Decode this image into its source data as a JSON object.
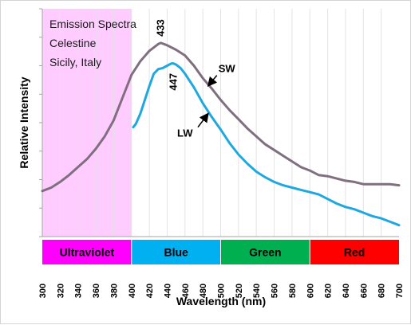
{
  "chart_data": {
    "type": "line",
    "title_lines": [
      "Emission Spectra",
      "Celestine",
      "Sicily, Italy"
    ],
    "xlabel": "Wavelength (nm)",
    "ylabel": "Relative Intensity",
    "xlim": [
      300,
      700
    ],
    "ylim": [
      0,
      100
    ],
    "x_ticks": [
      300,
      320,
      340,
      360,
      380,
      400,
      420,
      440,
      460,
      480,
      500,
      520,
      540,
      560,
      580,
      600,
      620,
      640,
      660,
      680,
      700
    ],
    "grid": "vertical",
    "shaded_region": {
      "from": 300,
      "to": 400,
      "color": "#ffccff"
    },
    "series": [
      {
        "name": "SW",
        "color": "#7f6f7f",
        "x": [
          300,
          310,
          320,
          330,
          340,
          350,
          360,
          370,
          380,
          390,
          400,
          410,
          420,
          430,
          433,
          440,
          450,
          460,
          470,
          480,
          490,
          500,
          510,
          520,
          530,
          540,
          550,
          560,
          570,
          580,
          590,
          600,
          610,
          620,
          630,
          640,
          650,
          660,
          670,
          680,
          690,
          700
        ],
        "y": [
          20,
          21.5,
          24,
          27,
          30.5,
          34,
          38.5,
          44,
          51,
          61,
          71,
          77,
          81.5,
          84.5,
          85,
          84,
          82,
          79.5,
          75,
          69.5,
          65,
          60,
          55.5,
          51.5,
          47.5,
          44,
          40.5,
          38,
          35.5,
          33,
          30.5,
          29,
          27,
          26.5,
          25.5,
          24.5,
          24,
          23,
          23,
          23,
          23,
          22.5
        ]
      },
      {
        "name": "LW",
        "color": "#1fa8e0",
        "x": [
          402,
          405,
          410,
          415,
          420,
          425,
          430,
          435,
          440,
          445,
          447,
          450,
          455,
          460,
          470,
          480,
          490,
          500,
          510,
          520,
          530,
          540,
          550,
          560,
          570,
          580,
          590,
          600,
          610,
          620,
          630,
          640,
          650,
          660,
          670,
          680,
          690,
          700
        ],
        "y": [
          48,
          49.5,
          54,
          60,
          66,
          71.5,
          73.5,
          74,
          75,
          76,
          76,
          75.5,
          74,
          71.5,
          65.5,
          58.5,
          52.5,
          47,
          41,
          36,
          32,
          28.5,
          26,
          24,
          22.5,
          21.5,
          20.5,
          19.5,
          18.5,
          16.5,
          14.5,
          13,
          12,
          10.5,
          9,
          8,
          6.5,
          5
        ]
      }
    ],
    "peak_labels": [
      {
        "text": "433",
        "series": "SW",
        "x": 433
      },
      {
        "text": "447",
        "series": "LW",
        "x": 447
      }
    ],
    "series_labels": [
      {
        "text": "SW",
        "series": "SW",
        "x": 485
      },
      {
        "text": "LW",
        "series": "LW",
        "x": 487
      }
    ],
    "bands": [
      {
        "label": "Ultraviolet",
        "from": 300,
        "to": 400,
        "color": "#ff00ff"
      },
      {
        "label": "Blue",
        "from": 400,
        "to": 500,
        "color": "#00b0f0"
      },
      {
        "label": "Green",
        "from": 500,
        "to": 600,
        "color": "#00b050"
      },
      {
        "label": "Red",
        "from": 600,
        "to": 700,
        "color": "#ff0000"
      }
    ]
  }
}
